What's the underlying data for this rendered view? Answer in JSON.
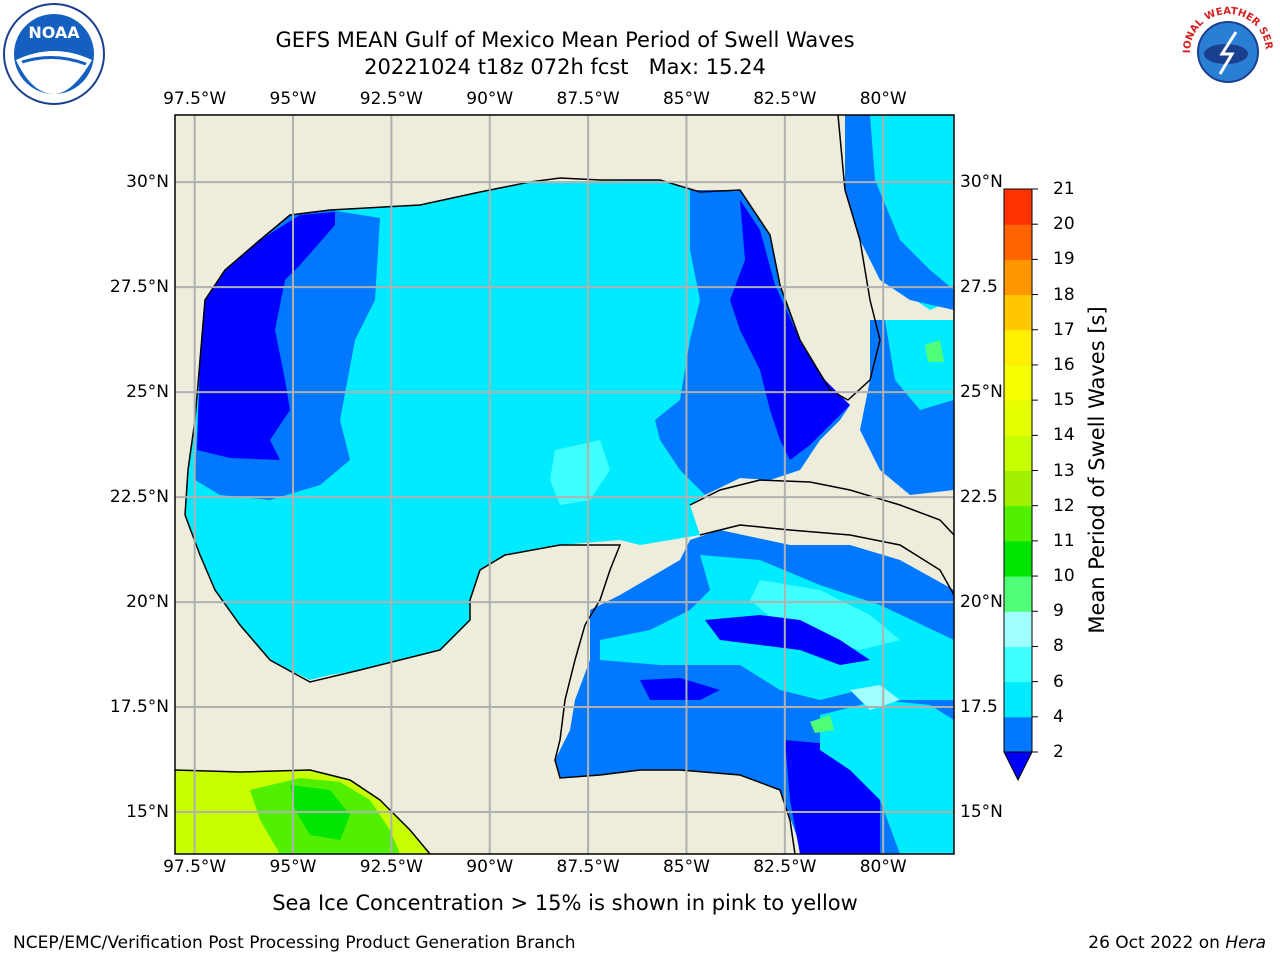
{
  "header": {
    "title_line1": "GEFS MEAN Gulf of Mexico Mean Period of Swell Waves",
    "title_line2": "20221024 t18z 072h fcst   Max: 15.24"
  },
  "logos": {
    "left": "NOAA",
    "right": "NATIONAL WEATHER SERVICE"
  },
  "map": {
    "lon_labels": [
      "97.5°W",
      "95°W",
      "92.5°W",
      "90°W",
      "87.5°W",
      "85°W",
      "82.5°W",
      "80°W"
    ],
    "lon_values": [
      -97.5,
      -95,
      -92.5,
      -90,
      -87.5,
      -85,
      -82.5,
      -80
    ],
    "lat_labels": [
      "30°N",
      "27.5°N",
      "25°N",
      "22.5°N",
      "20°N",
      "17.5°N",
      "15°N"
    ],
    "lat_values": [
      30,
      27.5,
      25,
      22.5,
      20,
      17.5,
      15
    ],
    "lat_right_labels": [
      "30°N",
      "27.5",
      "25°N",
      "22.5",
      "20°N",
      "17.5",
      "15°N"
    ],
    "extent": {
      "lon_min": -98,
      "lon_max": -78.2,
      "lat_min": 14,
      "lat_max": 31.6
    },
    "land_color": "#eeeddc",
    "grid_color": "#b0b0b0"
  },
  "colorbar": {
    "title": "Mean Period of Swell Waves [s]",
    "labels": [
      "2",
      "4",
      "6",
      "8",
      "9",
      "10",
      "11",
      "12",
      "13",
      "14",
      "15",
      "16",
      "17",
      "18",
      "19",
      "20",
      "21"
    ],
    "colors": [
      "#0078ff",
      "#00ebff",
      "#40ffff",
      "#a0ffff",
      "#50ff78",
      "#00e600",
      "#50f000",
      "#a0f000",
      "#c8ff00",
      "#e6ff00",
      "#f6ff00",
      "#fff000",
      "#ffc800",
      "#ff9600",
      "#ff6400",
      "#ff3200"
    ],
    "under_color": "#0000ff"
  },
  "footer": {
    "note": "Sea Ice Concentration > 15% is shown in pink to yellow",
    "credit": "NCEP/EMC/Verification Post Processing Product Generation Branch",
    "date_prefix": "26 Oct 2022 on ",
    "host": "Hera"
  }
}
